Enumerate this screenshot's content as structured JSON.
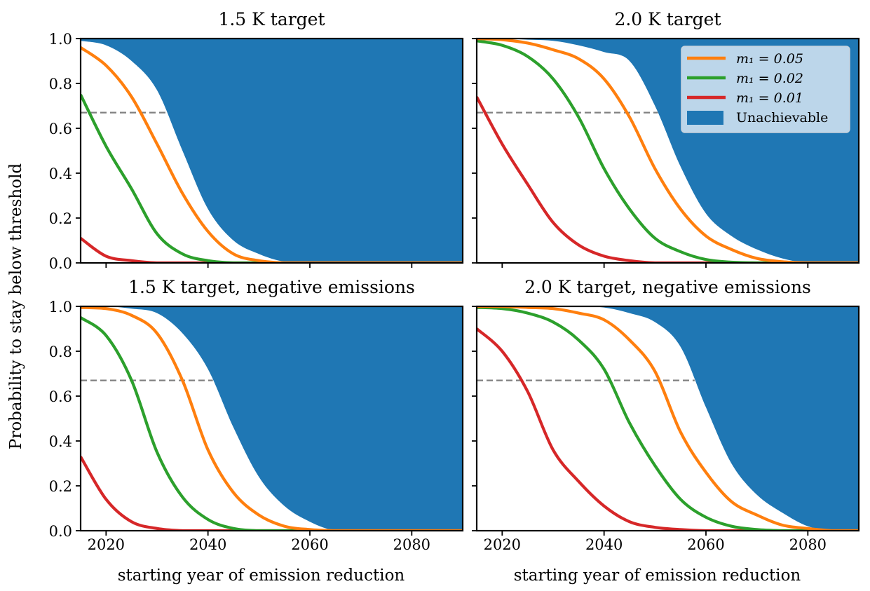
{
  "chart_data": {
    "type": "line",
    "ylabel": "Probability to stay below threshold",
    "xlabel": "starting year of emission reduction",
    "xlim": [
      2015,
      2090
    ],
    "ylim": [
      0,
      1
    ],
    "xticks": [
      2020,
      2040,
      2060,
      2080
    ],
    "yticks": [
      "0.0",
      "0.2",
      "0.4",
      "0.6",
      "0.8",
      "1.0"
    ],
    "threshold": 0.67,
    "grid": false,
    "legend_placement": "upper-right of top-right panel",
    "colors": {
      "m005": "#ff7f0e",
      "m002": "#2ca02c",
      "m001": "#d62728",
      "unachievable": "#1f77b4",
      "threshold": "#808080"
    },
    "legend": [
      {
        "label": "m₁ = 0.05",
        "key": "m005"
      },
      {
        "label": "m₁ = 0.02",
        "key": "m002"
      },
      {
        "label": "m₁ = 0.01",
        "key": "m001"
      },
      {
        "label": "Unachievable",
        "key": "unachievable"
      }
    ],
    "panels": [
      {
        "title": "1.5 K target",
        "x": [
          2015,
          2020,
          2025,
          2030,
          2035,
          2040,
          2045,
          2050,
          2055,
          2060,
          2065,
          2070,
          2075,
          2080,
          2085,
          2090
        ],
        "unachievable_boundary": [
          0.99,
          0.97,
          0.9,
          0.77,
          0.5,
          0.24,
          0.1,
          0.04,
          0.005,
          0,
          0,
          0,
          0,
          0,
          0,
          0
        ],
        "series": {
          "m005": [
            0.96,
            0.88,
            0.74,
            0.53,
            0.31,
            0.14,
            0.04,
            0.01,
            0,
            0,
            0,
            0,
            0,
            0,
            0,
            0
          ],
          "m002": [
            0.75,
            0.52,
            0.33,
            0.13,
            0.04,
            0.01,
            0,
            0,
            0,
            0,
            0,
            0,
            0,
            0,
            0,
            0
          ],
          "m001": [
            0.11,
            0.03,
            0.01,
            0,
            0,
            0,
            0,
            0,
            0,
            0,
            0,
            0,
            0,
            0,
            0,
            0
          ]
        }
      },
      {
        "title": "2.0 K target",
        "x": [
          2015,
          2020,
          2025,
          2030,
          2035,
          2040,
          2045,
          2050,
          2055,
          2060,
          2065,
          2070,
          2075,
          2080,
          2085,
          2090
        ],
        "unachievable_boundary": [
          1.0,
          1.0,
          0.995,
          0.99,
          0.97,
          0.94,
          0.9,
          0.7,
          0.43,
          0.22,
          0.12,
          0.06,
          0.02,
          0,
          0,
          0
        ],
        "series": {
          "m005": [
            1.0,
            0.995,
            0.98,
            0.95,
            0.91,
            0.82,
            0.65,
            0.42,
            0.24,
            0.12,
            0.06,
            0.02,
            0.005,
            0,
            0,
            0
          ],
          "m002": [
            0.99,
            0.97,
            0.92,
            0.82,
            0.65,
            0.42,
            0.24,
            0.11,
            0.05,
            0.015,
            0.003,
            0,
            0,
            0,
            0,
            0
          ],
          "m001": [
            0.74,
            0.53,
            0.35,
            0.18,
            0.08,
            0.03,
            0.01,
            0,
            0,
            0,
            0,
            0,
            0,
            0,
            0,
            0
          ]
        }
      },
      {
        "title": "1.5 K target, negative emissions",
        "x": [
          2015,
          2020,
          2025,
          2030,
          2035,
          2040,
          2045,
          2050,
          2055,
          2060,
          2065,
          2070,
          2075,
          2080,
          2085,
          2090
        ],
        "unachievable_boundary": [
          1.0,
          1.0,
          0.99,
          0.97,
          0.88,
          0.72,
          0.46,
          0.24,
          0.11,
          0.04,
          0,
          0,
          0,
          0,
          0,
          0
        ],
        "series": {
          "m005": [
            0.995,
            0.99,
            0.96,
            0.88,
            0.67,
            0.36,
            0.17,
            0.07,
            0.02,
            0.005,
            0,
            0,
            0,
            0,
            0,
            0
          ],
          "m002": [
            0.95,
            0.87,
            0.67,
            0.35,
            0.15,
            0.05,
            0.01,
            0,
            0,
            0,
            0,
            0,
            0,
            0,
            0,
            0
          ],
          "m001": [
            0.33,
            0.14,
            0.04,
            0.01,
            0,
            0,
            0,
            0,
            0,
            0,
            0,
            0,
            0,
            0,
            0,
            0
          ]
        }
      },
      {
        "title": "2.0 K target, negative emissions",
        "x": [
          2015,
          2020,
          2025,
          2030,
          2035,
          2040,
          2045,
          2050,
          2055,
          2060,
          2065,
          2070,
          2075,
          2080,
          2085,
          2090
        ],
        "unachievable_boundary": [
          1.0,
          1.0,
          1.0,
          1.0,
          1.0,
          0.995,
          0.97,
          0.93,
          0.82,
          0.55,
          0.3,
          0.16,
          0.08,
          0.02,
          0,
          0
        ],
        "series": {
          "m005": [
            1.0,
            1.0,
            0.995,
            0.99,
            0.97,
            0.94,
            0.85,
            0.71,
            0.44,
            0.26,
            0.13,
            0.07,
            0.025,
            0.01,
            0,
            0
          ],
          "m002": [
            0.995,
            0.99,
            0.97,
            0.93,
            0.85,
            0.72,
            0.48,
            0.29,
            0.14,
            0.06,
            0.02,
            0.005,
            0,
            0,
            0,
            0
          ],
          "m001": [
            0.9,
            0.8,
            0.62,
            0.36,
            0.22,
            0.11,
            0.04,
            0.015,
            0.005,
            0,
            0,
            0,
            0,
            0,
            0,
            0
          ]
        }
      }
    ]
  }
}
